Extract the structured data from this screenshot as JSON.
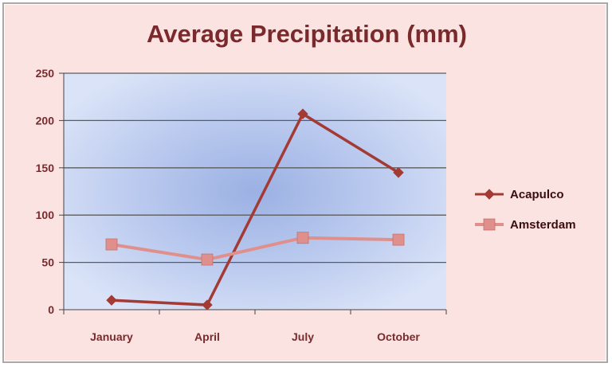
{
  "chart_data": {
    "type": "line",
    "title": "Average Precipitation (mm)",
    "categories": [
      "January",
      "April",
      "July",
      "October"
    ],
    "series": [
      {
        "name": "Acapulco",
        "values": [
          10,
          5,
          207,
          145
        ],
        "color": "#a33a34",
        "marker": "diamond"
      },
      {
        "name": "Amsterdam",
        "values": [
          69,
          53,
          76,
          74
        ],
        "color": "#e0908c",
        "marker": "square"
      }
    ],
    "xlabel": "",
    "ylabel": "",
    "ylim": [
      0,
      250
    ],
    "yticks": [
      0,
      50,
      100,
      150,
      200,
      250
    ],
    "grid": true,
    "legend": "right"
  }
}
